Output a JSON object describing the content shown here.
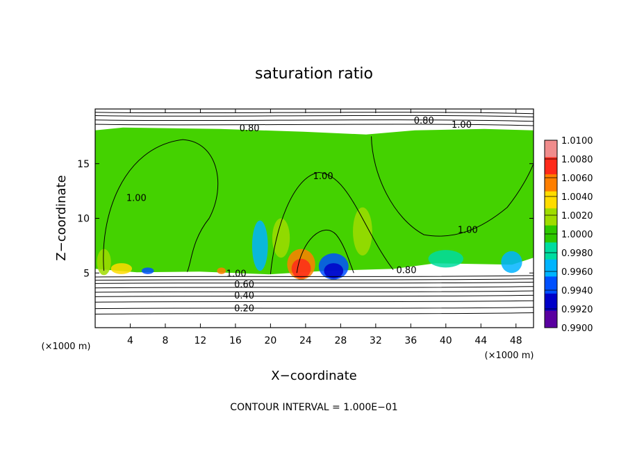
{
  "chart_data": {
    "type": "heatmap",
    "title": "saturation ratio",
    "xlabel": "X−coordinate",
    "ylabel": "Z−coordinate",
    "x_unit_left": "(×1000 m)",
    "x_unit_right": "(×1000 m)",
    "xlim": [
      0,
      50
    ],
    "ylim": [
      0,
      20
    ],
    "x_ticks": [
      4,
      8,
      12,
      16,
      20,
      24,
      28,
      32,
      36,
      40,
      44,
      48
    ],
    "y_ticks": [
      5,
      10,
      15
    ],
    "grid": false,
    "contour_interval_text": "CONTOUR INTERVAL = 1.000E−01",
    "contour_labels": [
      {
        "text": "0.80",
        "x": 37.5,
        "z": 19.0
      },
      {
        "text": "1.00",
        "x": 41.8,
        "z": 18.6
      },
      {
        "text": "0.80",
        "x": 17.6,
        "z": 18.3
      },
      {
        "text": "1.00",
        "x": 26.0,
        "z": 13.9
      },
      {
        "text": "1.00",
        "x": 4.7,
        "z": 11.9
      },
      {
        "text": "1.00",
        "x": 42.5,
        "z": 9.0
      },
      {
        "text": "1.00",
        "x": 16.1,
        "z": 5.0
      },
      {
        "text": "0.80",
        "x": 35.5,
        "z": 5.3
      },
      {
        "text": "0.60",
        "x": 17.0,
        "z": 4.0
      },
      {
        "text": "0.40",
        "x": 17.0,
        "z": 3.0
      },
      {
        "text": "0.20",
        "x": 17.0,
        "z": 1.8
      }
    ],
    "colorbar": {
      "labels": [
        "1.0100",
        "1.0080",
        "1.0060",
        "1.0040",
        "1.0020",
        "1.0000",
        "0.9980",
        "0.9960",
        "0.9940",
        "0.9920",
        "0.9900"
      ],
      "colors": [
        "#f08c8c",
        "#ff2a1a",
        "#ff7f00",
        "#ffdc00",
        "#9fdc00",
        "#2ec800",
        "#00dca0",
        "#00b4ff",
        "#0050ff",
        "#0000c8",
        "#5a00a0"
      ]
    },
    "regions": {
      "main_color": "#44d200",
      "upper_white_z": 18.3,
      "lower_white_z": 5.0,
      "anomalies": [
        {
          "x": 23.5,
          "z": 5.8,
          "rx": 1.6,
          "rz": 1.4,
          "color": "#ff7f00"
        },
        {
          "x": 23.5,
          "z": 5.4,
          "rx": 1.1,
          "rz": 0.9,
          "color": "#ff2a1a"
        },
        {
          "x": 27.2,
          "z": 5.6,
          "rx": 1.7,
          "rz": 1.2,
          "color": "#0050ff"
        },
        {
          "x": 27.2,
          "z": 5.2,
          "rx": 1.1,
          "rz": 0.7,
          "color": "#0000c8"
        },
        {
          "x": 18.8,
          "z": 7.5,
          "rx": 0.9,
          "rz": 2.3,
          "color": "#00b4ff"
        },
        {
          "x": 21.2,
          "z": 8.2,
          "rx": 1.0,
          "rz": 1.8,
          "color": "#9fdc00"
        },
        {
          "x": 30.5,
          "z": 8.8,
          "rx": 1.1,
          "rz": 2.2,
          "color": "#9fdc00"
        },
        {
          "x": 3.0,
          "z": 5.4,
          "rx": 1.2,
          "rz": 0.5,
          "color": "#ffdc00"
        },
        {
          "x": 6.0,
          "z": 5.2,
          "rx": 0.7,
          "rz": 0.3,
          "color": "#0050ff"
        },
        {
          "x": 14.4,
          "z": 5.2,
          "rx": 0.5,
          "rz": 0.3,
          "color": "#ff7f00"
        },
        {
          "x": 40.0,
          "z": 6.3,
          "rx": 2.0,
          "rz": 0.8,
          "color": "#00dca0"
        },
        {
          "x": 47.5,
          "z": 6.0,
          "rx": 1.2,
          "rz": 1.0,
          "color": "#00b4ff"
        },
        {
          "x": 1.0,
          "z": 6.0,
          "rx": 0.8,
          "rz": 1.2,
          "color": "#9fdc00"
        }
      ]
    }
  }
}
